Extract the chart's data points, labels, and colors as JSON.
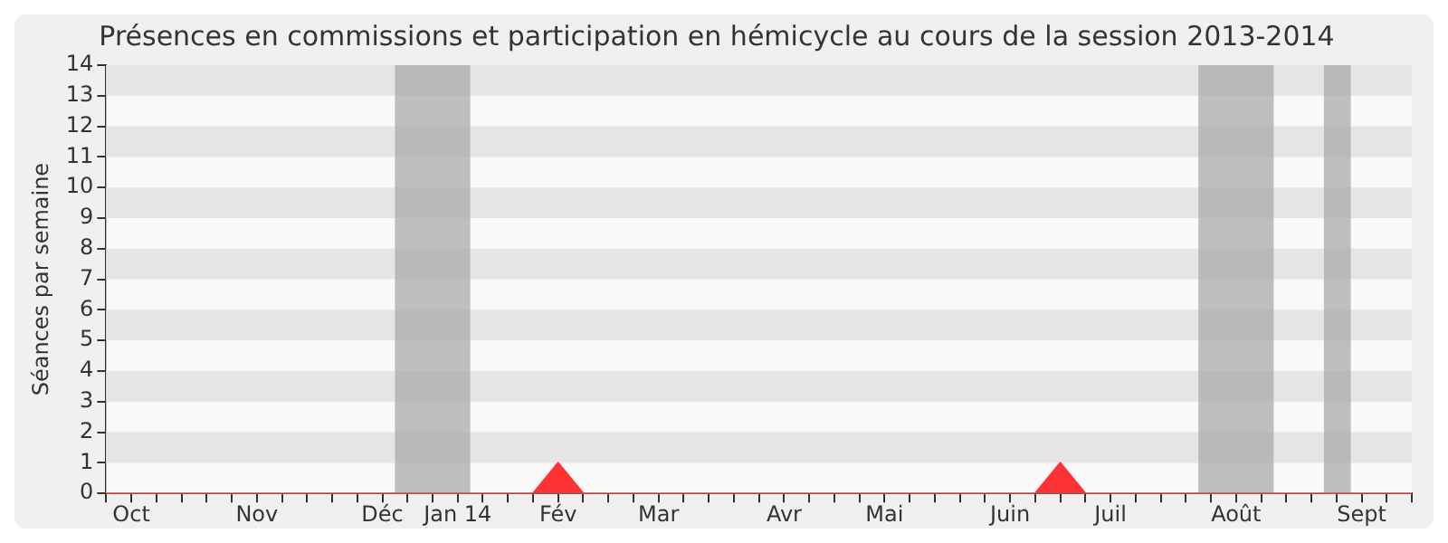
{
  "chart_data": {
    "type": "area",
    "title": "Présences en commissions et participation en hémicycle au cours de la session 2013-2014",
    "ylabel": "Séances par semaine",
    "x": [
      "2013-09-28",
      "2013-10-05",
      "2013-10-12",
      "2013-10-19",
      "2013-10-26",
      "2013-11-02",
      "2013-11-09",
      "2013-11-16",
      "2013-11-23",
      "2013-11-30",
      "2013-12-07",
      "2013-12-14",
      "2013-12-21",
      "2013-12-28",
      "2014-01-04",
      "2014-01-11",
      "2014-01-18",
      "2014-01-25",
      "2014-02-01",
      "2014-02-08",
      "2014-02-15",
      "2014-02-22",
      "2014-03-01",
      "2014-03-08",
      "2014-03-15",
      "2014-03-22",
      "2014-03-29",
      "2014-04-05",
      "2014-04-12",
      "2014-04-19",
      "2014-04-26",
      "2014-05-03",
      "2014-05-10",
      "2014-05-17",
      "2014-05-24",
      "2014-05-31",
      "2014-06-07",
      "2014-06-14",
      "2014-06-21",
      "2014-06-28",
      "2014-07-05",
      "2014-07-12",
      "2014-07-19",
      "2014-07-26",
      "2014-08-02",
      "2014-08-09",
      "2014-08-16",
      "2014-08-23",
      "2014-08-30",
      "2014-09-06",
      "2014-09-13",
      "2014-09-20",
      "2014-09-27"
    ],
    "series": [
      {
        "color": "#ff3333",
        "values": [
          0,
          0,
          0,
          0,
          0,
          0,
          0,
          0,
          0,
          0,
          0,
          0,
          0,
          0,
          0,
          0,
          0,
          0,
          1,
          0,
          0,
          0,
          0,
          0,
          0,
          0,
          0,
          0,
          0,
          0,
          0,
          0,
          0,
          0,
          0,
          0,
          0,
          0,
          1,
          0,
          0,
          0,
          0,
          0,
          0,
          0,
          0,
          0,
          0,
          0,
          0,
          0,
          0
        ]
      }
    ],
    "xlim": [
      "2013-09-28",
      "2014-09-27"
    ],
    "xticks": [
      {
        "value": "2013-09-28",
        "label": null
      },
      {
        "value": "2013-10-05",
        "label": "Oct"
      },
      {
        "value": "2013-10-12",
        "label": null
      },
      {
        "value": "2013-10-19",
        "label": null
      },
      {
        "value": "2013-10-26",
        "label": null
      },
      {
        "value": "2013-11-02",
        "label": null
      },
      {
        "value": "2013-11-09",
        "label": "Nov"
      },
      {
        "value": "2013-11-16",
        "label": null
      },
      {
        "value": "2013-11-23",
        "label": null
      },
      {
        "value": "2013-11-30",
        "label": null
      },
      {
        "value": "2013-12-07",
        "label": null
      },
      {
        "value": "2013-12-14",
        "label": "Déc"
      },
      {
        "value": "2013-12-21",
        "label": null
      },
      {
        "value": "2013-12-28",
        "label": null
      },
      {
        "value": "2014-01-04",
        "label": "Jan 14"
      },
      {
        "value": "2014-01-11",
        "label": null
      },
      {
        "value": "2014-01-18",
        "label": null
      },
      {
        "value": "2014-01-25",
        "label": null
      },
      {
        "value": "2014-02-01",
        "label": "Fév"
      },
      {
        "value": "2014-02-08",
        "label": null
      },
      {
        "value": "2014-02-15",
        "label": null
      },
      {
        "value": "2014-02-22",
        "label": null
      },
      {
        "value": "2014-03-01",
        "label": "Mar"
      },
      {
        "value": "2014-03-08",
        "label": null
      },
      {
        "value": "2014-03-15",
        "label": null
      },
      {
        "value": "2014-03-22",
        "label": null
      },
      {
        "value": "2014-03-29",
        "label": null
      },
      {
        "value": "2014-04-05",
        "label": "Avr"
      },
      {
        "value": "2014-04-12",
        "label": null
      },
      {
        "value": "2014-04-19",
        "label": null
      },
      {
        "value": "2014-04-26",
        "label": null
      },
      {
        "value": "2014-05-03",
        "label": "Mai"
      },
      {
        "value": "2014-05-10",
        "label": null
      },
      {
        "value": "2014-05-17",
        "label": null
      },
      {
        "value": "2014-05-24",
        "label": null
      },
      {
        "value": "2014-05-31",
        "label": null
      },
      {
        "value": "2014-06-07",
        "label": "Juin"
      },
      {
        "value": "2014-06-14",
        "label": null
      },
      {
        "value": "2014-06-21",
        "label": null
      },
      {
        "value": "2014-06-28",
        "label": null
      },
      {
        "value": "2014-07-05",
        "label": "Juil"
      },
      {
        "value": "2014-07-12",
        "label": null
      },
      {
        "value": "2014-07-19",
        "label": null
      },
      {
        "value": "2014-07-26",
        "label": null
      },
      {
        "value": "2014-08-02",
        "label": null
      },
      {
        "value": "2014-08-09",
        "label": "Août"
      },
      {
        "value": "2014-08-16",
        "label": null
      },
      {
        "value": "2014-08-23",
        "label": null
      },
      {
        "value": "2014-08-30",
        "label": null
      },
      {
        "value": "2014-09-06",
        "label": null
      },
      {
        "value": "2014-09-13",
        "label": "Sept"
      },
      {
        "value": "2014-09-20",
        "label": null
      },
      {
        "value": "2014-09-27",
        "label": null
      }
    ],
    "ylim": [
      0,
      14
    ],
    "yticks": [
      0,
      1,
      2,
      3,
      4,
      5,
      6,
      7,
      8,
      9,
      10,
      11,
      12,
      13,
      14
    ],
    "bands": [
      {
        "axis": "x",
        "from": "2013-12-17T12:00",
        "to": "2014-01-07T12:00",
        "color": "#aaaaaa"
      },
      {
        "axis": "x",
        "from": "2014-07-29T12:00",
        "to": "2014-08-19T12:00",
        "color": "#aaaaaa"
      },
      {
        "axis": "x",
        "from": "2014-09-02T12:00",
        "to": "2014-09-10",
        "color": "#aaaaaa"
      }
    ],
    "legend": false,
    "marker": "none"
  }
}
